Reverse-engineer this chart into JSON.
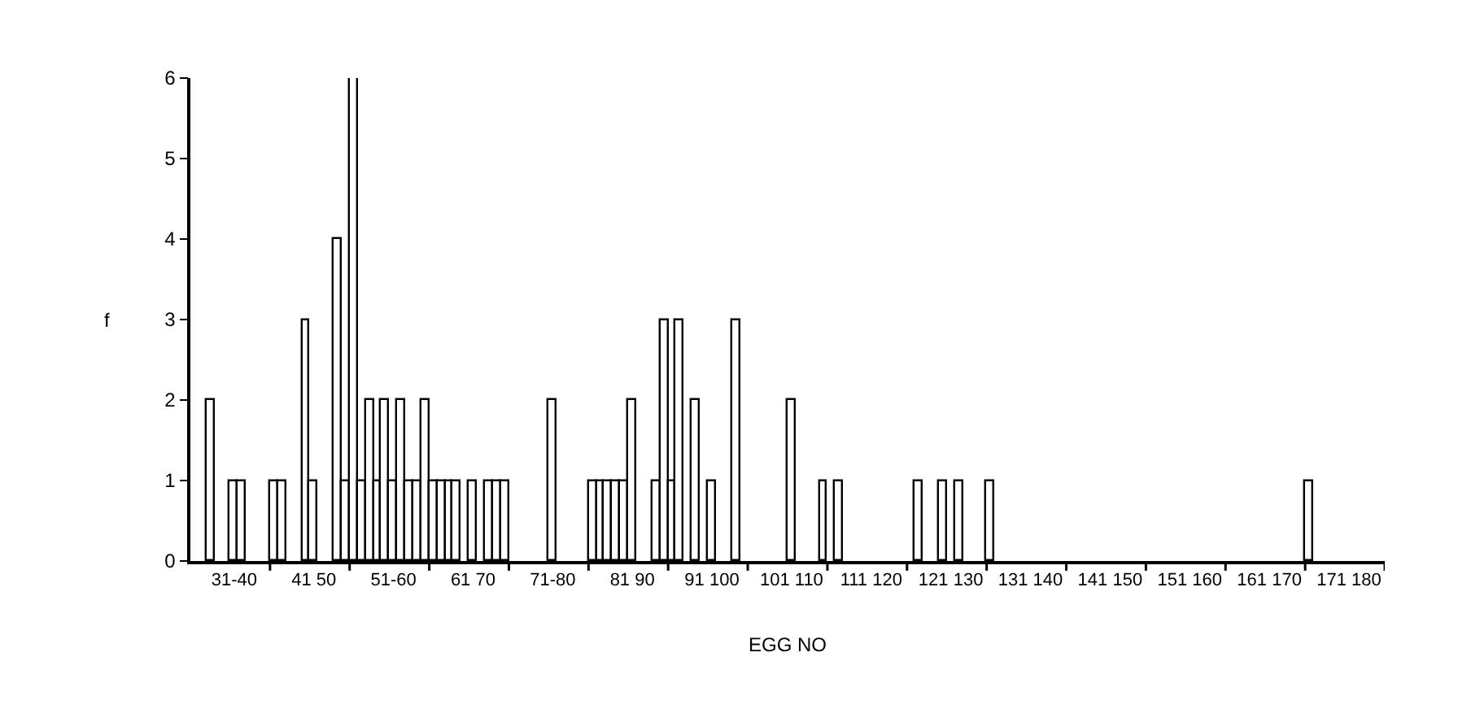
{
  "chart_data": {
    "type": "bar",
    "xlabel": "EGG NO",
    "ylabel": "f",
    "categories": [
      null,
      null,
      null,
      null,
      null,
      "31-40",
      null,
      null,
      null,
      null,
      null,
      null,
      null,
      null,
      null,
      "41 50",
      null,
      null,
      null,
      null,
      null,
      null,
      null,
      null,
      null,
      "51-60",
      null,
      null,
      null,
      null,
      null,
      null,
      null,
      null,
      null,
      "61 70",
      null,
      null,
      null,
      null,
      null,
      null,
      null,
      null,
      null,
      "71-80",
      null,
      null,
      null,
      null,
      null,
      null,
      null,
      null,
      null,
      "81 90",
      null,
      null,
      null,
      null,
      null,
      null,
      null,
      null,
      null,
      "91 100",
      null,
      null,
      null,
      null,
      null,
      null,
      null,
      null,
      null,
      "101 110",
      null,
      null,
      null,
      null,
      null,
      null,
      null,
      null,
      null,
      "111 120",
      null,
      null,
      null,
      null,
      null,
      null,
      null,
      null,
      null,
      "121 130",
      null,
      null,
      null,
      null,
      null,
      null,
      null,
      null,
      null,
      "131 140",
      null,
      null,
      null,
      null,
      null,
      null,
      null,
      null,
      null,
      "141 150",
      null,
      null,
      null,
      null,
      null,
      null,
      null,
      null,
      null,
      "151 160",
      null,
      null,
      null,
      null,
      null,
      null,
      null,
      null,
      null,
      "161 170",
      null,
      null,
      null,
      null,
      null,
      null,
      null,
      null,
      null,
      "171 180",
      null,
      null,
      null,
      null
    ],
    "values": [
      null,
      null,
      2,
      null,
      null,
      1,
      1,
      null,
      null,
      null,
      1,
      1,
      null,
      null,
      3,
      1,
      null,
      null,
      4,
      1,
      6,
      1,
      2,
      1,
      2,
      1,
      2,
      1,
      1,
      2,
      1,
      1,
      1,
      1,
      null,
      1,
      null,
      1,
      1,
      1,
      null,
      null,
      null,
      null,
      null,
      2,
      null,
      null,
      null,
      null,
      1,
      1,
      1,
      1,
      1,
      2,
      null,
      null,
      1,
      3,
      1,
      3,
      null,
      2,
      null,
      1,
      null,
      null,
      3,
      null,
      null,
      null,
      null,
      null,
      null,
      2,
      null,
      null,
      null,
      1,
      null,
      1,
      null,
      null,
      null,
      null,
      null,
      null,
      null,
      null,
      null,
      1,
      null,
      null,
      1,
      null,
      1,
      null,
      null,
      null,
      1,
      null,
      null,
      null,
      null,
      null,
      null,
      null,
      null,
      null,
      null,
      null,
      null,
      null,
      null,
      null,
      null,
      null,
      null,
      null,
      null,
      null,
      null,
      null,
      null,
      null,
      null,
      null,
      null,
      null,
      null,
      null,
      null,
      null,
      null,
      null,
      null,
      null,
      null,
      null,
      1,
      null,
      null,
      null,
      null,
      null,
      null,
      null,
      null,
      null
    ],
    "color": "#ffffff",
    "ylim": [
      0,
      6
    ],
    "yticks": [
      0,
      1,
      2,
      3,
      4,
      5,
      6
    ]
  }
}
